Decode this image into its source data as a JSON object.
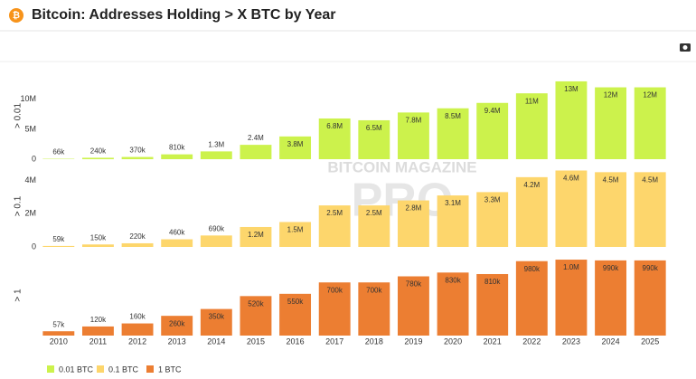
{
  "chart_data": {
    "type": "bar",
    "title": "Bitcoin: Addresses Holding > X BTC by Year",
    "watermark": [
      "BITCOIN MAGAZINE",
      "PRO"
    ],
    "categories": [
      "2010",
      "2011",
      "2012",
      "2013",
      "2014",
      "2015",
      "2016",
      "2017",
      "2018",
      "2019",
      "2020",
      "2021",
      "2022",
      "2023",
      "2024",
      "2025"
    ],
    "series": [
      {
        "name": "0.01 BTC",
        "ylabel": "> 0.01",
        "color": "#ccf24c",
        "values": [
          66000,
          240000,
          370000,
          810000,
          1300000,
          2400000,
          3800000,
          6800000,
          6500000,
          7800000,
          8500000,
          9400000,
          11000000,
          13000000,
          12000000,
          12000000
        ],
        "value_labels": [
          "66k",
          "240k",
          "370k",
          "810k",
          "1.3M",
          "2.4M",
          "3.8M",
          "6.8M",
          "6.5M",
          "7.8M",
          "8.5M",
          "9.4M",
          "11M",
          "13M",
          "12M",
          "12M"
        ],
        "ylim": [
          0,
          14500000
        ],
        "yticks": [
          0,
          {
            "value": 5000000,
            "label": "5M"
          },
          {
            "value": 10000000,
            "label": "10M"
          }
        ]
      },
      {
        "name": "0.1 BTC",
        "ylabel": "> 0.1",
        "color": "#fdd66c",
        "values": [
          59000,
          150000,
          220000,
          460000,
          690000,
          1200000,
          1500000,
          2500000,
          2500000,
          2800000,
          3100000,
          3300000,
          4200000,
          4600000,
          4500000,
          4500000
        ],
        "value_labels": [
          "59k",
          "150k",
          "220k",
          "460k",
          "690k",
          "1.2M",
          "1.5M",
          "2.5M",
          "2.5M",
          "2.8M",
          "3.1M",
          "3.3M",
          "4.2M",
          "4.6M",
          "4.5M",
          "4.5M"
        ],
        "ylim": [
          0,
          4900000
        ],
        "yticks": [
          0,
          {
            "value": 2000000,
            "label": "2M"
          },
          {
            "value": 4000000,
            "label": "4M"
          }
        ]
      },
      {
        "name": "1 BTC",
        "ylabel": "> 1",
        "color": "#ec7e32",
        "values": [
          57000,
          120000,
          160000,
          260000,
          350000,
          520000,
          550000,
          700000,
          700000,
          780000,
          830000,
          810000,
          980000,
          1000000,
          990000,
          990000
        ],
        "value_labels": [
          "57k",
          "120k",
          "160k",
          "260k",
          "350k",
          "520k",
          "550k",
          "700k",
          "700k",
          "780k",
          "830k",
          "810k",
          "980k",
          "1.0M",
          "990k",
          "990k"
        ],
        "ylim": [
          0,
          1060000
        ],
        "yticks": []
      }
    ]
  }
}
